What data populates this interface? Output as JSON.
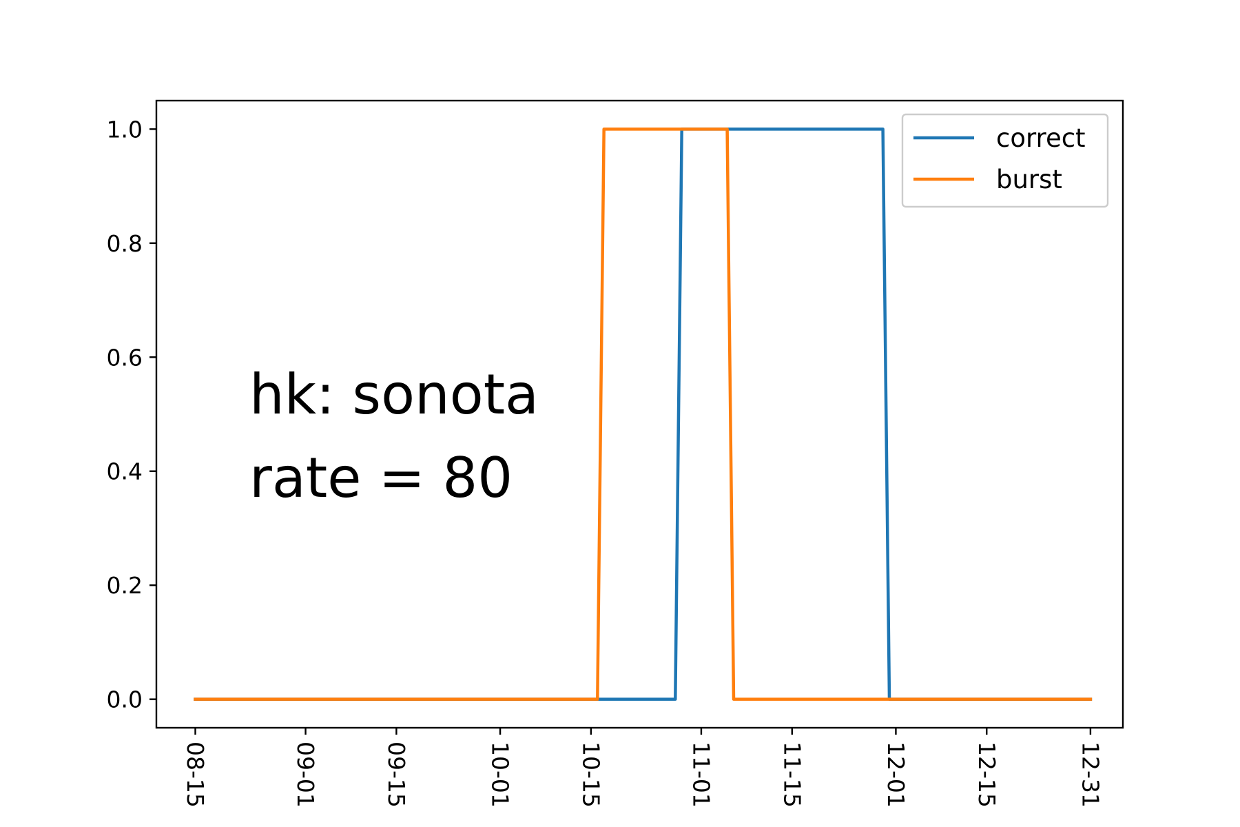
{
  "chart_data": {
    "type": "line",
    "title": "",
    "xlabel": "",
    "ylabel": "",
    "x_ticks": [
      "08-15",
      "09-01",
      "09-15",
      "10-01",
      "10-15",
      "11-01",
      "11-15",
      "12-01",
      "12-15",
      "12-31"
    ],
    "x_tick_dates": [
      "2000-08-15",
      "2000-09-01",
      "2000-09-15",
      "2000-10-01",
      "2000-10-15",
      "2000-11-01",
      "2000-11-15",
      "2000-12-01",
      "2000-12-15",
      "2000-12-31"
    ],
    "xlim": [
      "2000-08-09",
      "2001-01-05"
    ],
    "y_ticks": [
      "0.0",
      "0.2",
      "0.4",
      "0.6",
      "0.8",
      "1.0"
    ],
    "ylim": [
      -0.05,
      1.05
    ],
    "grid": false,
    "legend": {
      "position": "top-right"
    },
    "annotations": [
      "hk: sonota",
      "rate = 80"
    ],
    "series": [
      {
        "name": "correct",
        "color": "#1f77b4",
        "points": [
          [
            "2000-08-15",
            0
          ],
          [
            "2000-10-15",
            0
          ],
          [
            "2000-10-28",
            0
          ],
          [
            "2000-10-29",
            1
          ],
          [
            "2000-11-29",
            1
          ],
          [
            "2000-11-30",
            0
          ],
          [
            "2000-12-31",
            0
          ]
        ]
      },
      {
        "name": "burst",
        "color": "#ff7f0e",
        "points": [
          [
            "2000-08-15",
            0
          ],
          [
            "2000-10-16",
            0
          ],
          [
            "2000-10-17",
            1
          ],
          [
            "2000-11-05",
            1
          ],
          [
            "2000-11-06",
            0
          ],
          [
            "2000-12-31",
            0
          ]
        ]
      }
    ]
  }
}
